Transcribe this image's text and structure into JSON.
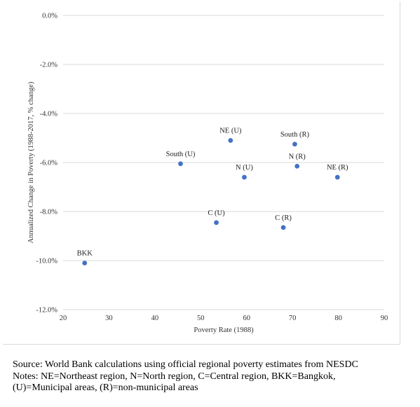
{
  "chart_data": {
    "type": "scatter",
    "title": "",
    "xlabel": "Poverty Rate (1988)",
    "ylabel": "Annualized Change in Poverty (1988-2017, % change)",
    "xlim": [
      20,
      90
    ],
    "ylim": [
      -12,
      0
    ],
    "x_ticks": [
      "20",
      "30",
      "40",
      "50",
      "60",
      "70",
      "80",
      "90"
    ],
    "y_ticks": [
      "0.0%",
      "-2.0%",
      "-4.0%",
      "-6.0%",
      "-8.0%",
      "-10.0%",
      "-12.0%"
    ],
    "grid": "horizontal",
    "point_color": "#4472c4",
    "points": [
      {
        "label": "BKK",
        "x": 24.7,
        "y": -10.1
      },
      {
        "label": "South (U)",
        "x": 45.6,
        "y": -6.05
      },
      {
        "label": "C (U)",
        "x": 53.4,
        "y": -8.45
      },
      {
        "label": "NE (U)",
        "x": 56.5,
        "y": -5.1
      },
      {
        "label": "N (U)",
        "x": 59.5,
        "y": -6.6
      },
      {
        "label": "C (R)",
        "x": 68.0,
        "y": -8.65
      },
      {
        "label": "South (R)",
        "x": 70.5,
        "y": -5.25
      },
      {
        "label": "N (R)",
        "x": 71.0,
        "y": -6.15
      },
      {
        "label": "NE (R)",
        "x": 79.8,
        "y": -6.6
      }
    ]
  },
  "notes": {
    "source": "Source: World Bank calculations using official regional poverty estimates from NESDC",
    "line1": "Notes: NE=Northeast region, N=North region, C=Central region, BKK=Bangkok,",
    "line2": "(U)=Municipal areas, (R)=non-municipal areas"
  }
}
